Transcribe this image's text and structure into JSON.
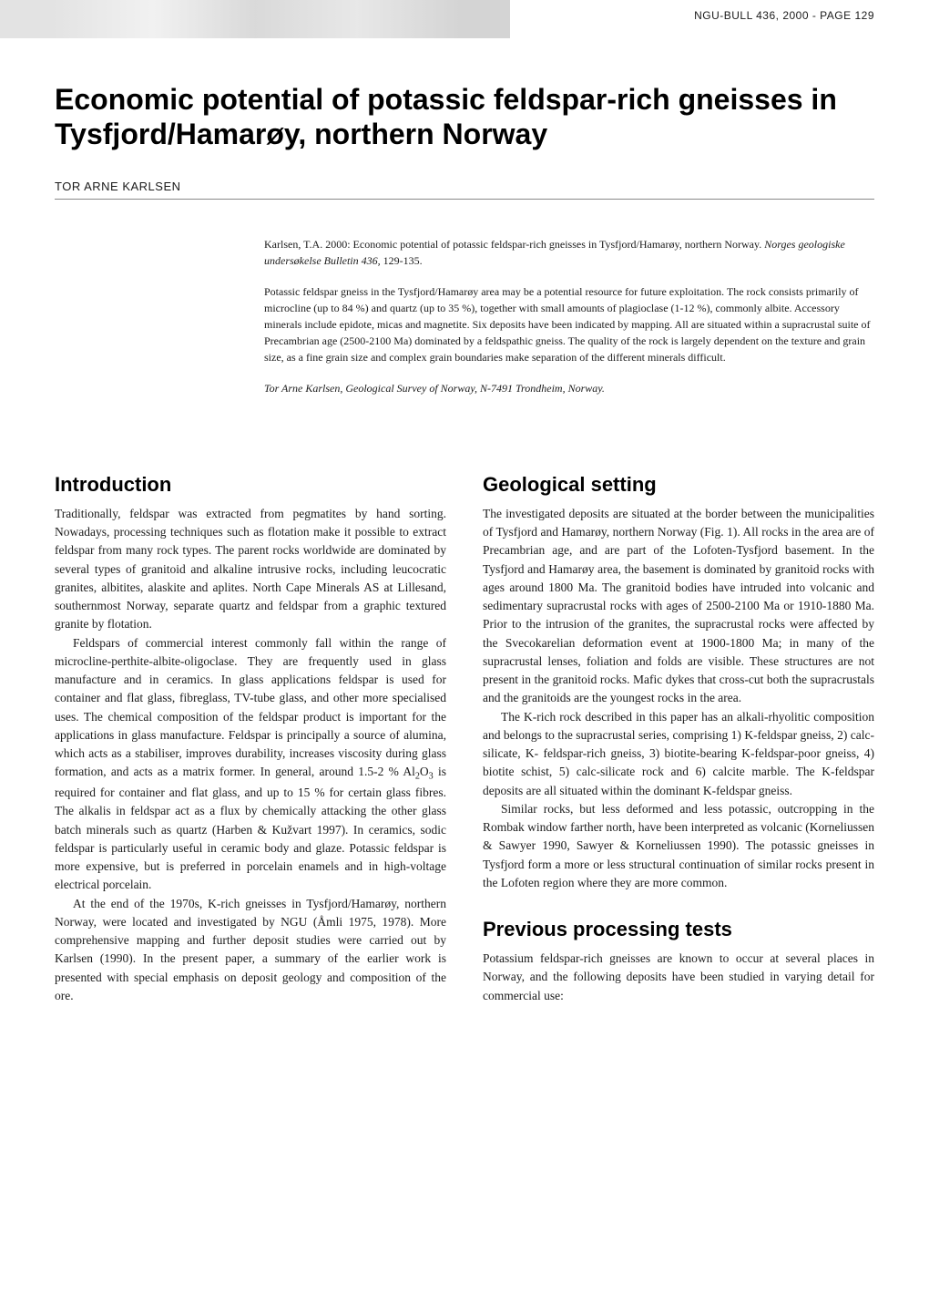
{
  "header": {
    "page_info": "NGU-BULL 436, 2000 - PAGE 129"
  },
  "title": "Economic potential of potassic feldspar-rich gneisses in Tysfjord/Hamarøy, northern Norway",
  "author": "TOR ARNE KARLSEN",
  "abstract": {
    "citation_text": "Karlsen, T.A. 2000: Economic potential of potassic feldspar-rich gneisses in Tysfjord/Hamarøy, northern Norway. ",
    "citation_journal": "Norges geologiske undersøkelse Bulletin 436,",
    "citation_pages": " 129-135.",
    "body": "Potassic feldspar gneiss in the Tysfjord/Hamarøy area may be a potential resource for future exploitation. The rock consists primarily of microcline (up to 84 %) and quartz (up to 35 %), together with small amounts of plagioclase (1-12 %), commonly albite. Accessory minerals include epidote, micas and magnetite. Six deposits have been indicated by mapping. All are situated within a supracrustal suite of Precambrian age (2500-2100 Ma) dominated by a feldspathic gneiss. The quality of the rock is largely dependent on the texture and grain size, as a fine grain size and complex grain boundaries make separation of the different minerals difficult.",
    "affiliation": "Tor Arne Karlsen, Geological Survey of Norway, N-7491 Trondheim, Norway."
  },
  "left_column": {
    "heading": "Introduction",
    "p1": "Traditionally, feldspar was extracted from pegmatites by hand sorting. Nowadays, processing techniques such as flotation make it possible to extract feldspar from many rock types. The parent rocks worldwide are dominated by several types of granitoid and alkaline intrusive rocks, including leucocratic granites, albitites, alaskite and aplites. North Cape Minerals AS at Lillesand, southernmost Norway, separate quartz and feldspar from a graphic textured granite by flotation.",
    "p2_a": "Feldspars of commercial interest commonly fall within the range of microcline-perthite-albite-oligoclase. They are frequently used in glass manufacture and in ceramics. In glass applications feldspar is used for container and flat glass, fibreglass, TV-tube glass, and other more specialised uses. The chemical composition of the feldspar product is important for the applications in glass manufacture. Feldspar is principally a source of alumina, which acts as a stabiliser, improves durability, increases viscosity during glass formation, and acts as a matrix former. In general, around 1.5-2 % Al",
    "p2_b": "O",
    "p2_c": " is required for container and flat glass, and up to 15 % for certain glass fibres. The alkalis in feldspar act as a flux by chemically attacking the other glass batch minerals such as quartz (Harben & Kužvart 1997). In ceramics, sodic feldspar is particularly useful in ceramic body and glaze. Potassic feldspar is more expensive, but is preferred in porcelain enamels and in high-voltage electrical porcelain.",
    "p3": "At the end of the 1970s, K-rich gneisses in Tysfjord/Hamarøy, northern Norway, were located and investigated by NGU (Åmli 1975, 1978). More comprehensive mapping and further deposit studies were carried out by Karlsen (1990). In the present paper, a summary of the earlier work is presented with special emphasis on deposit geology and composition of the ore."
  },
  "right_column": {
    "heading1": "Geological setting",
    "p1": "The investigated deposits are situated at the border between the municipalities of Tysfjord and Hamarøy, northern Norway (Fig. 1). All rocks in the area are of Precambrian age, and are part of the Lofoten-Tysfjord basement. In the Tysfjord and Hamarøy area, the basement is dominated by granitoid rocks with ages around 1800 Ma. The granitoid bodies have intruded into volcanic and sedimentary supracrustal rocks with ages of 2500-2100 Ma or 1910-1880 Ma. Prior to the intrusion of the granites, the supracrustal rocks were affected by the Svecokarelian deformation event at 1900-1800 Ma; in many of the supracrustal lenses, foliation and folds are visible. These structures are not present in the granitoid rocks. Mafic dykes that cross-cut both the supracrustals and the granitoids are the youngest rocks in the area.",
    "p2": "The K-rich rock described in this paper has an alkali-rhyolitic composition and belongs to the supracrustal series, comprising 1) K-feldspar gneiss, 2) calc-silicate, K- feldspar-rich gneiss, 3) biotite-bearing K-feldspar-poor gneiss, 4) biotite schist, 5) calc-silicate rock and 6) calcite marble. The K-feldspar deposits are all situated within the dominant K-feldspar gneiss.",
    "p3": "Similar rocks, but less deformed and less potassic, outcropping in the Rombak window farther north, have been interpreted as volcanic (Korneliussen & Sawyer 1990, Sawyer & Korneliussen 1990). The potassic gneisses in Tysfjord form a more or less structural continuation of similar rocks present in the Lofoten region where they are more common.",
    "heading2": "Previous processing tests",
    "p4": "Potassium feldspar-rich gneisses are known to occur at several places in Norway, and the following deposits have been studied in varying detail for commercial use:"
  }
}
